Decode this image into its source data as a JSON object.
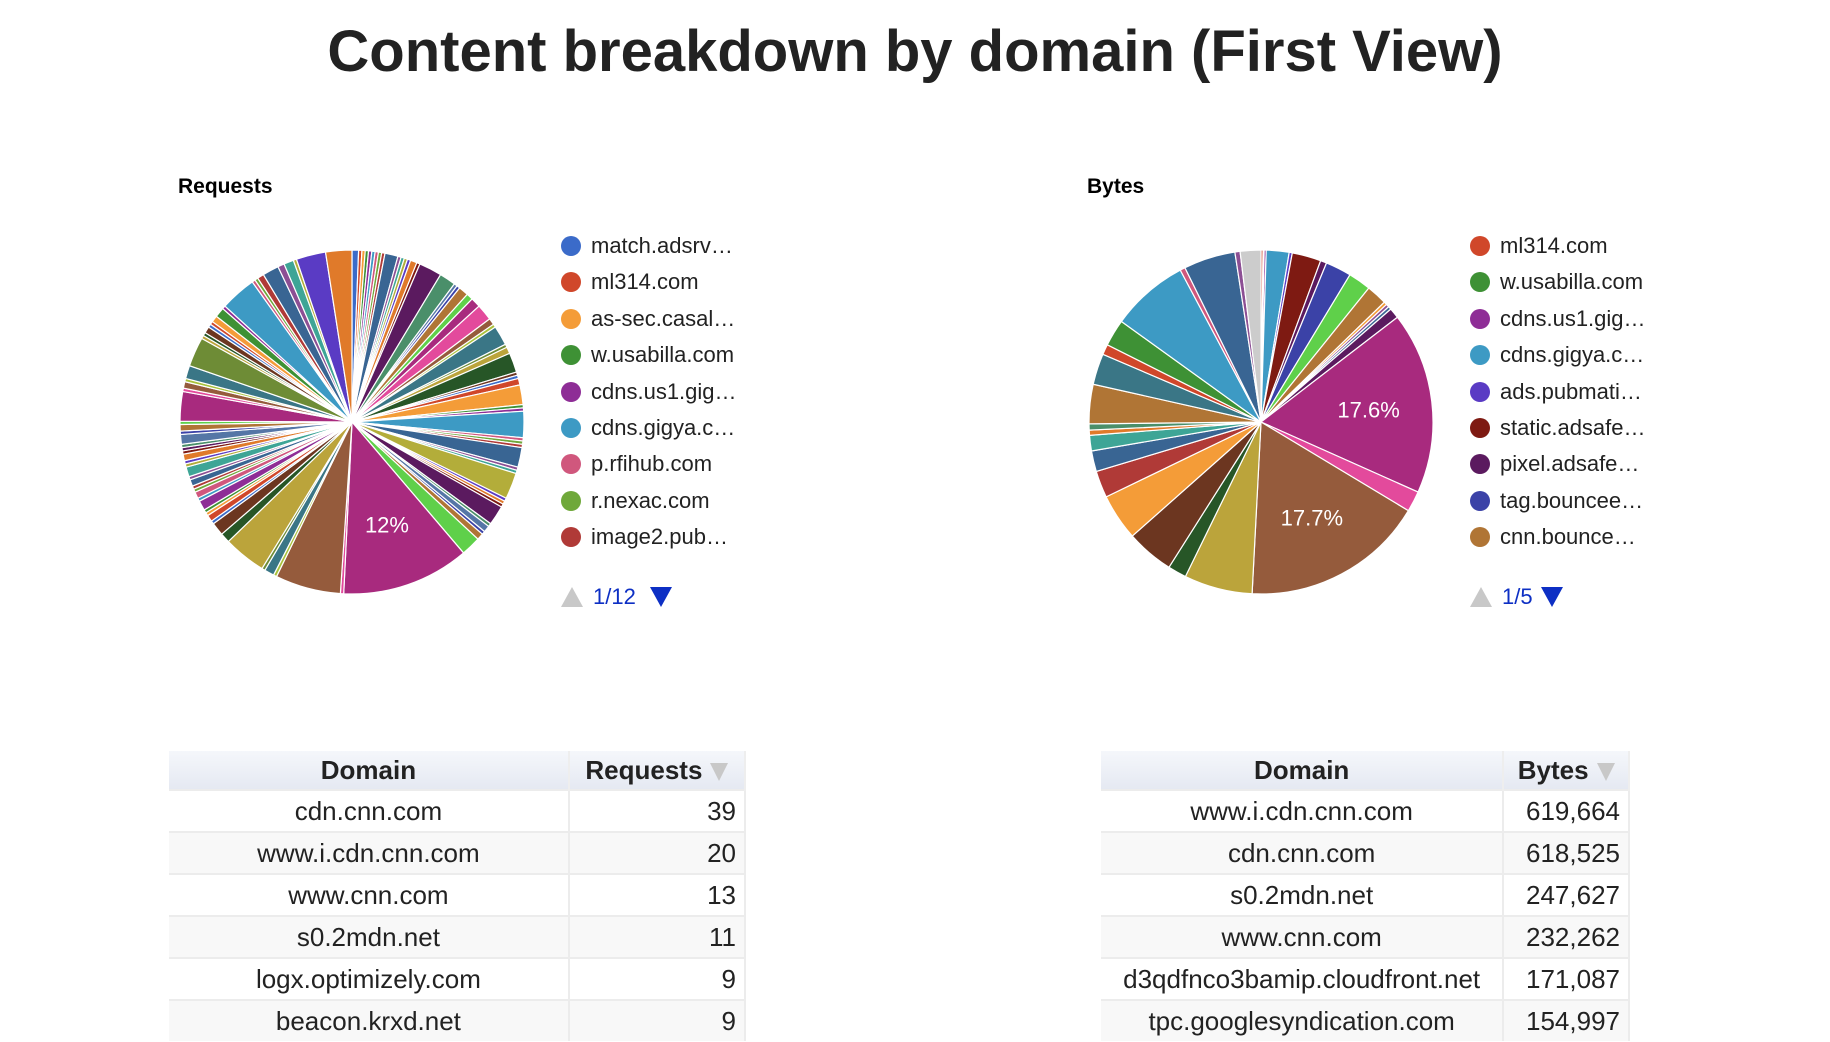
{
  "title": "Content breakdown by domain (First View)",
  "palette": [
    "#3b6bc9",
    "#d0472a",
    "#f49c38",
    "#3e9135",
    "#8e2d96",
    "#3d9ac4",
    "#d0577d",
    "#6fa83a",
    "#b03a37",
    "#396593",
    "#8c4f94",
    "#3ea596",
    "#b3ad3a",
    "#5a3bc4",
    "#e07a2a",
    "#7e1a12",
    "#5b1a5f",
    "#4a8f6a",
    "#5576a6",
    "#3b42a7",
    "#b07535",
    "#5fd04a",
    "#a82a7e",
    "#e34a9c",
    "#955b3c",
    "#a9c13b",
    "#3a7686",
    "#6e8c36",
    "#bba43b",
    "#275627",
    "#6c3620",
    "#cccccc"
  ],
  "chart_data": [
    {
      "type": "pie",
      "title": "Requests",
      "start_angle": "top, clockwise",
      "slice_values": [
        2,
        1,
        1,
        1,
        1,
        1,
        1,
        1,
        1,
        4,
        1,
        1,
        1,
        1,
        2,
        1,
        7,
        5,
        1,
        1,
        3,
        2,
        3,
        5,
        2,
        1,
        6,
        1,
        2,
        6,
        1,
        1,
        2,
        6,
        1,
        1,
        8,
        1,
        1,
        1,
        6,
        1,
        1,
        8,
        1,
        1,
        1,
        6,
        1,
        2,
        1,
        2,
        6,
        39,
        1,
        20,
        1,
        3,
        1,
        13,
        3,
        4,
        1,
        2,
        1,
        1,
        3,
        1,
        2,
        1,
        1,
        2,
        1,
        3,
        1,
        1,
        2,
        1,
        1,
        1,
        3,
        1,
        2,
        1,
        9,
        1,
        2,
        1,
        4,
        9,
        1,
        1,
        2,
        1,
        1,
        2,
        3,
        1,
        11,
        1,
        1,
        2,
        5,
        2,
        3,
        1,
        9,
        8
      ],
      "slice_labels": [
        {
          "index": 53,
          "text": "12%"
        }
      ],
      "legend": {
        "position": "right",
        "items": [
          {
            "label": "match.adsrv…",
            "color": "#3b6bc9"
          },
          {
            "label": "ml314.com",
            "color": "#d0472a"
          },
          {
            "label": "as-sec.casal…",
            "color": "#f49c38"
          },
          {
            "label": "w.usabilla.com",
            "color": "#3e9135"
          },
          {
            "label": "cdns.us1.gig…",
            "color": "#8e2d96"
          },
          {
            "label": "cdns.gigya.c…",
            "color": "#3d9ac4"
          },
          {
            "label": "p.rfihub.com",
            "color": "#d0577d"
          },
          {
            "label": "r.nexac.com",
            "color": "#6fa83a"
          },
          {
            "label": "image2.pub…",
            "color": "#b03a37"
          }
        ],
        "page": "1/12"
      }
    },
    {
      "type": "pie",
      "title": "Bytes",
      "start_angle": "top, clockwise",
      "slices": [
        {
          "v": 0.2,
          "c": 1
        },
        {
          "v": 0.1,
          "c": 3
        },
        {
          "v": 0.2,
          "c": 4
        },
        {
          "v": 2.2,
          "c": 5
        },
        {
          "v": 0.3,
          "c": 13
        },
        {
          "v": 2.8,
          "c": 15
        },
        {
          "v": 0.6,
          "c": 16
        },
        {
          "v": 2.5,
          "c": 19
        },
        {
          "v": 2.2,
          "c": 21
        },
        {
          "v": 2.0,
          "c": 20
        },
        {
          "v": 0.3,
          "c": 2
        },
        {
          "v": 0.3,
          "c": 10
        },
        {
          "v": 0.3,
          "c": 9
        },
        {
          "v": 1.0,
          "c": 16
        },
        {
          "v": 17.6,
          "c": 22
        },
        {
          "v": 2.0,
          "c": 23
        },
        {
          "v": 17.7,
          "c": 24
        },
        {
          "v": 6.6,
          "c": 28
        },
        {
          "v": 1.8,
          "c": 29
        },
        {
          "v": 4.6,
          "c": 30
        },
        {
          "v": 4.5,
          "c": 2
        },
        {
          "v": 2.6,
          "c": 8
        },
        {
          "v": 2.0,
          "c": 9
        },
        {
          "v": 1.5,
          "c": 11
        },
        {
          "v": 0.5,
          "c": 14
        },
        {
          "v": 0.6,
          "c": 17
        },
        {
          "v": 3.8,
          "c": 20
        },
        {
          "v": 3.0,
          "c": 26
        },
        {
          "v": 1.0,
          "c": 1
        },
        {
          "v": 2.6,
          "c": 3
        },
        {
          "v": 7.5,
          "c": 5
        },
        {
          "v": 0.5,
          "c": 6
        },
        {
          "v": 5.0,
          "c": 9
        },
        {
          "v": 0.5,
          "c": 10
        },
        {
          "v": 2.0,
          "c": 31
        }
      ],
      "slice_labels": [
        {
          "index": 14,
          "text": "17.6%"
        },
        {
          "index": 16,
          "text": "17.7%"
        }
      ],
      "legend": {
        "position": "right",
        "items": [
          {
            "label": "ml314.com",
            "color": "#d0472a"
          },
          {
            "label": "w.usabilla.com",
            "color": "#3e9135"
          },
          {
            "label": "cdns.us1.gig…",
            "color": "#8e2d96"
          },
          {
            "label": "cdns.gigya.c…",
            "color": "#3d9ac4"
          },
          {
            "label": "ads.pubmati…",
            "color": "#5a3bc4"
          },
          {
            "label": "static.adsafe…",
            "color": "#7e1a12"
          },
          {
            "label": "pixel.adsafe…",
            "color": "#5b1a5f"
          },
          {
            "label": "tag.bouncee…",
            "color": "#3b42a7"
          },
          {
            "label": "cnn.bounce…",
            "color": "#b07535"
          }
        ],
        "page": "1/5"
      }
    }
  ],
  "tables": [
    {
      "headers": [
        "Domain",
        "Requests"
      ],
      "sorted_column": "Requests",
      "rows": [
        [
          "cdn.cnn.com",
          "39"
        ],
        [
          "www.i.cdn.cnn.com",
          "20"
        ],
        [
          "www.cnn.com",
          "13"
        ],
        [
          "s0.2mdn.net",
          "11"
        ],
        [
          "logx.optimizely.com",
          "9"
        ],
        [
          "beacon.krxd.net",
          "9"
        ]
      ]
    },
    {
      "headers": [
        "Domain",
        "Bytes"
      ],
      "sorted_column": "Bytes",
      "rows": [
        [
          "www.i.cdn.cnn.com",
          "619,664"
        ],
        [
          "cdn.cnn.com",
          "618,525"
        ],
        [
          "s0.2mdn.net",
          "247,627"
        ],
        [
          "www.cnn.com",
          "232,262"
        ],
        [
          "d3qdfnco3bamip.cloudfront.net",
          "171,087"
        ],
        [
          "tpc.googlesyndication.com",
          "154,997"
        ]
      ]
    }
  ]
}
